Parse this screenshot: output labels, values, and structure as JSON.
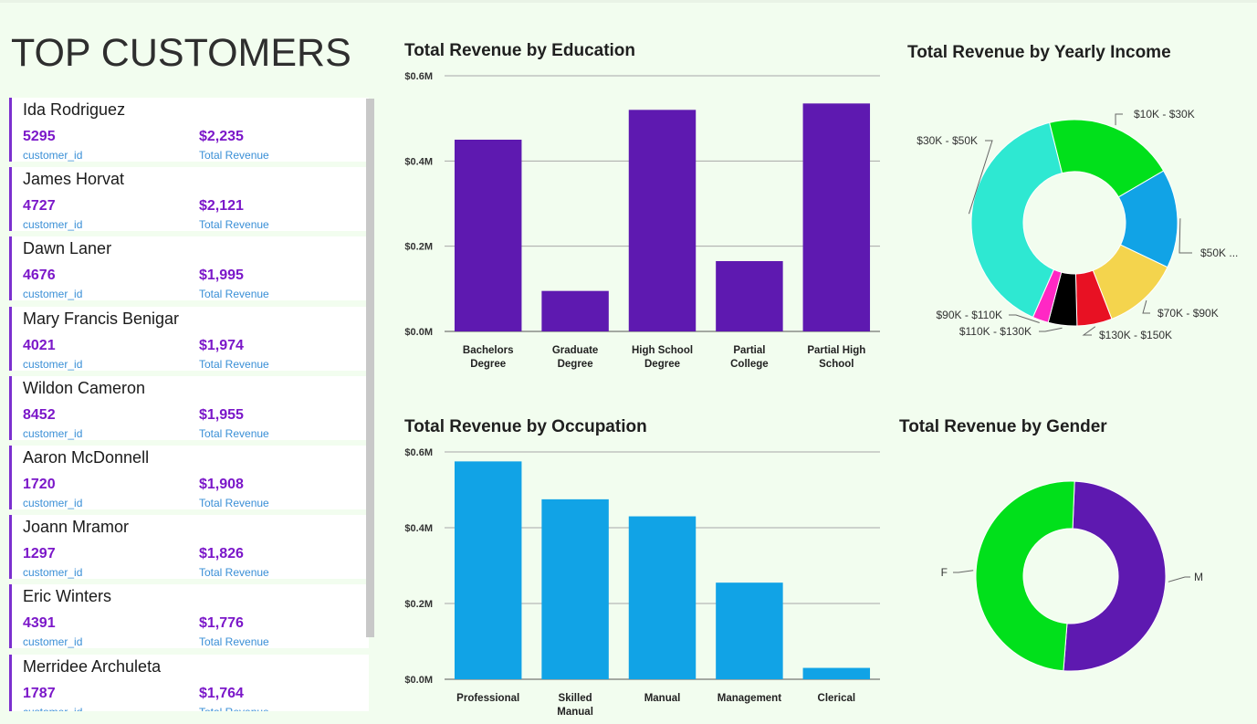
{
  "page": {
    "title": "TOP CUSTOMERS"
  },
  "customers": {
    "id_label": "customer_id",
    "revenue_label": "Total Revenue",
    "items": [
      {
        "name": "Ida Rodriguez",
        "id": "5295",
        "revenue": "$2,235"
      },
      {
        "name": "James Horvat",
        "id": "4727",
        "revenue": "$2,121"
      },
      {
        "name": "Dawn Laner",
        "id": "4676",
        "revenue": "$1,995"
      },
      {
        "name": "Mary Francis Benigar",
        "id": "4021",
        "revenue": "$1,974"
      },
      {
        "name": "Wildon Cameron",
        "id": "8452",
        "revenue": "$1,955"
      },
      {
        "name": "Aaron McDonnell",
        "id": "1720",
        "revenue": "$1,908"
      },
      {
        "name": "Joann Mramor",
        "id": "1297",
        "revenue": "$1,826"
      },
      {
        "name": "Eric Winters",
        "id": "4391",
        "revenue": "$1,776"
      },
      {
        "name": "Merridee Archuleta",
        "id": "1787",
        "revenue": "$1,764"
      }
    ]
  },
  "chart_data": [
    {
      "type": "bar",
      "title": "Total Revenue by Education",
      "categories": [
        "Bachelors Degree",
        "Graduate Degree",
        "High School Degree",
        "Partial College",
        "Partial High School"
      ],
      "values": [
        0.45,
        0.095,
        0.52,
        0.165,
        0.535
      ],
      "yticks": [
        "$0.0M",
        "$0.2M",
        "$0.4M",
        "$0.6M"
      ],
      "ylim": [
        0,
        0.6
      ],
      "unit": "M",
      "color": "#5e19b0"
    },
    {
      "type": "pie",
      "title": "Total Revenue by Yearly Income",
      "labels": [
        "$10K - $30K",
        "$50K ...",
        "$70K - $90K",
        "$130K - $150K",
        "$110K - $130K",
        "$90K - $110K",
        "$30K - $50K"
      ],
      "values": [
        20.5,
        15.5,
        12.0,
        5.5,
        4.5,
        2.5,
        39.5
      ],
      "colors": [
        "#01e01b",
        "#11a3e6",
        "#f4d44d",
        "#e81123",
        "#000000",
        "#ff28c4",
        "#2ee8d2",
        "#5e19b0"
      ]
    },
    {
      "type": "bar",
      "title": "Total Revenue by Occupation",
      "categories": [
        "Professional",
        "Skilled Manual",
        "Manual",
        "Management",
        "Clerical"
      ],
      "values": [
        0.575,
        0.475,
        0.43,
        0.255,
        0.03
      ],
      "yticks": [
        "$0.0M",
        "$0.2M",
        "$0.4M",
        "$0.6M"
      ],
      "ylim": [
        0,
        0.6
      ],
      "unit": "M",
      "color": "#11a3e6"
    },
    {
      "type": "pie",
      "title": "Total Revenue by Gender",
      "labels": [
        "M",
        "F"
      ],
      "values": [
        50.6,
        49.4
      ],
      "colors": [
        "#5e19b0",
        "#01e01b"
      ]
    }
  ]
}
